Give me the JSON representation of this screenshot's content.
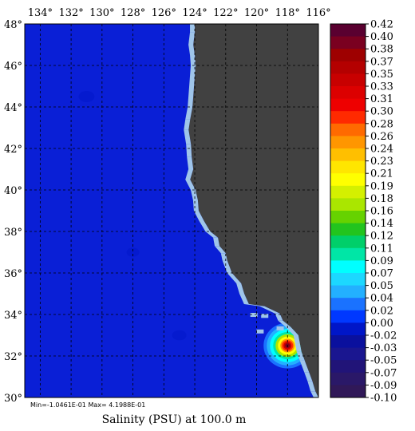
{
  "map": {
    "title": "Salinity (PSU) at 100.0 m",
    "stats": "Min=-1.0461E-01  Max= 4.1988E-01",
    "longitude_labels": [
      "134°",
      "132°",
      "130°",
      "128°",
      "126°",
      "124°",
      "122°",
      "120°",
      "118°",
      "116°"
    ],
    "latitude_labels": [
      "48°",
      "46°",
      "44°",
      "42°",
      "40°",
      "38°",
      "36°",
      "34°",
      "32°",
      "30°"
    ],
    "extent": {
      "lon_min": -135,
      "lon_max": -116,
      "lat_min": 30,
      "lat_max": 48
    },
    "colors": {
      "ocean": "#0a1fd6",
      "land": "#414141",
      "shelf": "#9fc5ea",
      "gridline": "#000000"
    },
    "hotspot": {
      "lon": -118,
      "lat": 32.5,
      "value": 0.42
    }
  },
  "colorbar": {
    "labels": [
      "0.42",
      "0.40",
      "0.38",
      "0.37",
      "0.35",
      "0.33",
      "0.31",
      "0.30",
      "0.28",
      "0.26",
      "0.24",
      "0.23",
      "0.21",
      "0.19",
      "0.18",
      "0.16",
      "0.14",
      "0.12",
      "0.11",
      "0.09",
      "0.07",
      "0.05",
      "0.04",
      "0.02",
      "0.00",
      "-0.02",
      "-0.03",
      "-0.05",
      "-0.07",
      "-0.09",
      "-0.10"
    ],
    "colors": [
      "#5a0030",
      "#7a0020",
      "#9e0000",
      "#b40000",
      "#c80000",
      "#dc0000",
      "#ee0000",
      "#ff2a00",
      "#ff6a00",
      "#ff9600",
      "#ffbf00",
      "#ffe600",
      "#ffff00",
      "#d4f000",
      "#aae600",
      "#66d200",
      "#22c41e",
      "#00cf6a",
      "#00e6a6",
      "#00ffff",
      "#1cd8ff",
      "#23b0ff",
      "#1a72ff",
      "#0038ff",
      "#0016c8",
      "#0a109e",
      "#1a1690",
      "#211478",
      "#2a1868",
      "#301858"
    ]
  }
}
